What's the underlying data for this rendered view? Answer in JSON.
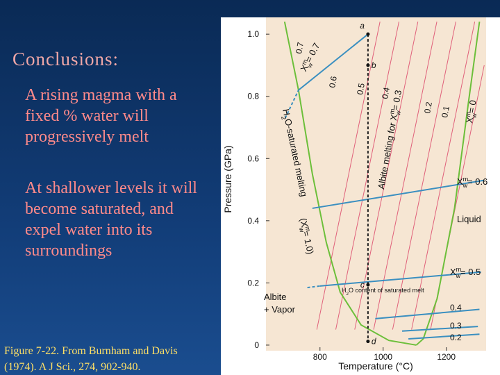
{
  "slide": {
    "title": "Conclusions:",
    "paragraphs": [
      "A rising magma with a fixed % water will progressively melt",
      "At shallower levels it will become saturated, and expel water into its surroundings"
    ],
    "caption": "Figure 7-22. From Burnham and Davis (1974). A J Sci., 274, 902-940."
  },
  "chart_data": {
    "type": "line",
    "xlabel": "Temperature (°C)",
    "ylabel": "Pressure (GPa)",
    "xlim": [
      629,
      1326
    ],
    "ylim": [
      -0.018,
      1.054
    ],
    "xticks": [
      800,
      1000,
      1200
    ],
    "yticks": [
      0,
      0.2,
      0.4,
      0.6,
      0.8,
      {
        "value": 1.0,
        "label": "1.0"
      }
    ],
    "series": [
      {
        "color": "#e0607a",
        "x": [
          790,
          990
        ],
        "y": [
          0.05,
          1.04
        ]
      },
      {
        "color": "#e0607a",
        "x": [
          850,
          1050
        ],
        "y": [
          0.05,
          1.04
        ]
      },
      {
        "color": "#e0607a",
        "x": [
          910,
          1110
        ],
        "y": [
          0.05,
          1.04
        ]
      },
      {
        "color": "#e0607a",
        "x": [
          970,
          1170
        ],
        "y": [
          0.05,
          1.04
        ]
      },
      {
        "color": "#e0607a",
        "x": [
          1030,
          1230
        ],
        "y": [
          0.05,
          1.04
        ]
      },
      {
        "color": "#e0607a",
        "x": [
          1090,
          1290
        ],
        "y": [
          0.05,
          1.04
        ]
      },
      {
        "color": "#e0607a",
        "x": [
          1150,
          1320
        ],
        "y": [
          0.05,
          0.9
        ]
      },
      {
        "color": "#6cbf3a",
        "x": [
          688,
          732,
          776,
          820,
          864,
          930,
          1018,
          1105
        ],
        "y": [
          1.04,
          0.82,
          0.55,
          0.33,
          0.17,
          0.065,
          0.015,
          0
        ]
      },
      {
        "color": "#6cbf3a",
        "x": [
          1305,
          1270,
          1226,
          1171,
          1127,
          1105
        ],
        "y": [
          1.04,
          0.78,
          0.44,
          0.15,
          0.02,
          0
        ]
      },
      {
        "color": "#3a8fc0",
        "x": [
          732,
          952
        ],
        "y": [
          0.82,
          1.0
        ]
      },
      {
        "color": "#3a8fc0",
        "dashed": true,
        "x": [
          690,
          732
        ],
        "y": [
          0.73,
          0.82
        ]
      },
      {
        "color": "#3a8fc0",
        "x": [
          776,
          1320
        ],
        "y": [
          0.44,
          0.53
        ]
      },
      {
        "color": "#3a8fc0",
        "x": [
          800,
          1310
        ],
        "y": [
          0.19,
          0.235
        ]
      },
      {
        "color": "#3a8fc0",
        "dashed": true,
        "x": [
          760,
          800
        ],
        "y": [
          0.185,
          0.19
        ]
      },
      {
        "color": "#3a8fc0",
        "x": [
          975,
          1305
        ],
        "y": [
          0.085,
          0.115
        ]
      },
      {
        "color": "#3a8fc0",
        "x": [
          1060,
          1300
        ],
        "y": [
          0.045,
          0.06
        ]
      },
      {
        "color": "#3a8fc0",
        "x": [
          1080,
          1305
        ],
        "y": [
          0.02,
          0.035
        ]
      },
      {
        "color": "#222222",
        "dashed": true,
        "x": [
          952,
          952
        ],
        "y": [
          1.0,
          0.012
        ]
      }
    ],
    "points": {
      "x": [
        952,
        952,
        952,
        952
      ],
      "y": [
        1.0,
        0.9,
        0.194,
        0.012
      ],
      "labels": [
        "a",
        "b",
        "c",
        "d"
      ]
    },
    "annotations": [
      {
        "parts": [
          "H",
          {
            "sub": "2"
          },
          "O-saturated melting"
        ]
      },
      {
        "parts": [
          "(X",
          {
            "sup": "m"
          },
          {
            "sub": "w"
          },
          "= 1.0)"
        ]
      },
      {
        "parts": [
          "Albite melting for X",
          {
            "sup": "m"
          },
          {
            "sub": "w"
          },
          "= 0.3"
        ]
      },
      {
        "parts": [
          "X",
          {
            "sup": "m"
          },
          {
            "sub": "w"
          },
          "= 0.7"
        ]
      },
      {
        "parts": [
          "X",
          {
            "sup": "m"
          },
          {
            "sub": "w"
          },
          "= 0"
        ]
      },
      {
        "parts": [
          "X",
          {
            "sup": "m"
          },
          {
            "sub": "w"
          },
          "= 0.6"
        ]
      },
      {
        "parts": [
          "Liquid"
        ]
      },
      {
        "parts": [
          "X",
          {
            "sup": "m"
          },
          {
            "sub": "w"
          },
          "= 0.5"
        ]
      },
      {
        "parts": [
          "H",
          {
            "sub": "2"
          },
          "O content of saturated melt"
        ]
      },
      {
        "parts": [
          "0.4"
        ]
      },
      {
        "parts": [
          "0.3"
        ]
      },
      {
        "parts": [
          "0.2"
        ]
      },
      {
        "parts": [
          "0.6"
        ]
      },
      {
        "parts": [
          "0.5"
        ]
      },
      {
        "parts": [
          "0.4"
        ]
      },
      {
        "parts": [
          "0.2"
        ]
      },
      {
        "parts": [
          "0.1"
        ]
      },
      {
        "parts": [
          "0.7"
        ]
      },
      {
        "parts": [
          "Albite"
        ]
      },
      {
        "parts": [
          "+ Vapor"
        ]
      }
    ]
  }
}
